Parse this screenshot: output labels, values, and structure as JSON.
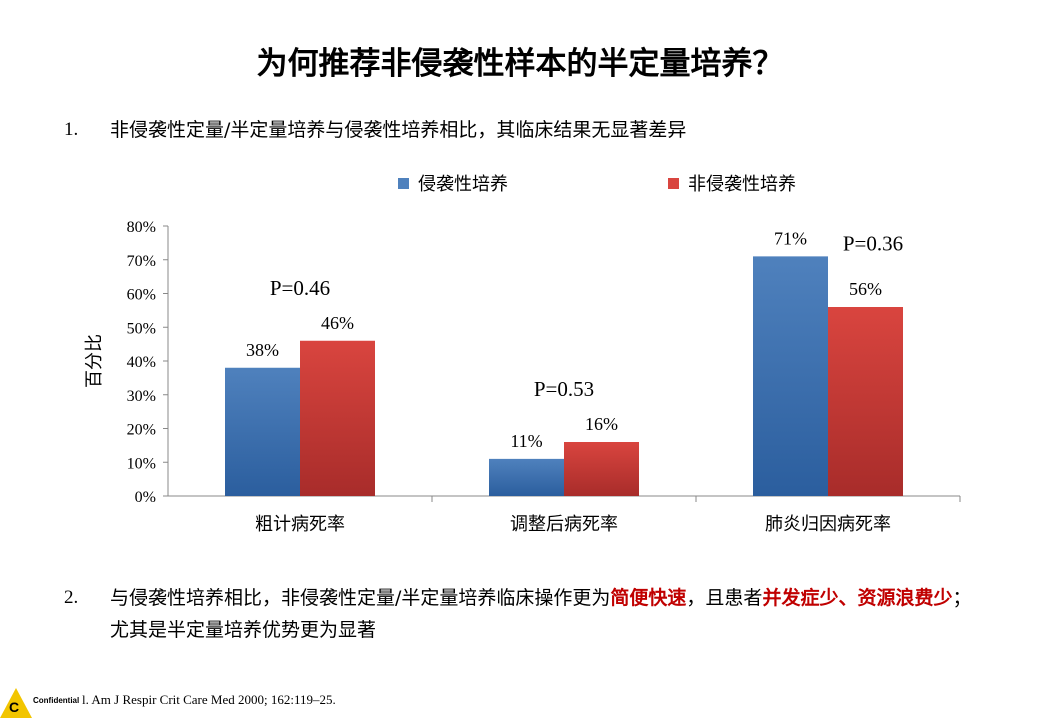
{
  "title": "为何推荐非侵袭性样本的半定量培养？",
  "point1": {
    "num": "1.",
    "text": "非侵袭性定量/半定量培养与侵袭性培养相比，其临床结果无显著差异"
  },
  "point2": {
    "num": "2.",
    "seg1": "与侵袭性培养相比，非侵袭性定量/半定量培养临床操作更为",
    "hl1": "简便快速",
    "seg2": "，且患者",
    "hl2": "并发症少、资源浪费少",
    "seg3": "；尤其是半定量培养优势更为显著"
  },
  "footer": {
    "logo_letter": "C",
    "confidential": "Confidential",
    "citation": "l. Am J Respir Crit Care Med 2000; 162:119–25."
  },
  "chart_data": {
    "type": "bar",
    "categories": [
      "粗计病死率",
      "调整后病死率",
      "肺炎归因病死率"
    ],
    "series": [
      {
        "name": "侵袭性培养",
        "values": [
          38,
          11,
          71
        ],
        "labels": [
          "38%",
          "11%",
          "71%"
        ],
        "color_top": "#4f81bd",
        "color_bottom": "#2b5e9e"
      },
      {
        "name": "非侵袭性培养",
        "values": [
          46,
          16,
          56
        ],
        "labels": [
          "46%",
          "16%",
          "56%"
        ],
        "color_top": "#d9453f",
        "color_bottom": "#a82c2a"
      }
    ],
    "p_values": [
      "P=0.46",
      "P=0.53",
      "P=0.36"
    ],
    "ylabel": "百分比",
    "ylim": [
      0,
      80
    ],
    "yticks": [
      "0%",
      "10%",
      "20%",
      "30%",
      "40%",
      "50%",
      "60%",
      "70%",
      "80%"
    ],
    "legend_position": "top",
    "grid": false
  }
}
